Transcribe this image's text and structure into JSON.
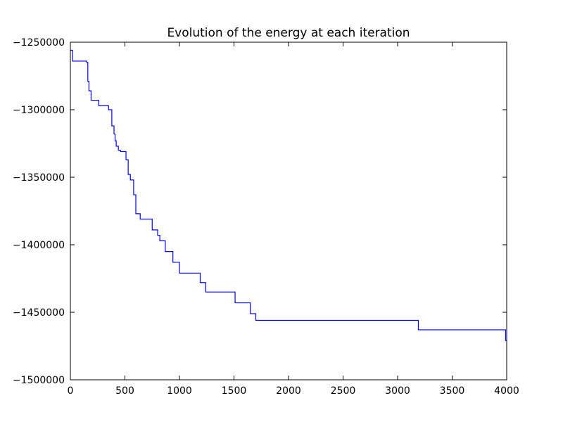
{
  "chart_data": {
    "type": "line",
    "title": "Evolution of the energy at each iteration",
    "xlabel": "",
    "ylabel": "",
    "xlim": [
      0,
      4000
    ],
    "ylim": [
      -1500000,
      -1250000
    ],
    "x_ticks": [
      0,
      500,
      1000,
      1500,
      2000,
      2500,
      3000,
      3500,
      4000
    ],
    "x_tick_labels": [
      "0",
      "500",
      "1000",
      "1500",
      "2000",
      "2500",
      "3000",
      "3500",
      "4000"
    ],
    "y_ticks": [
      -1250000,
      -1300000,
      -1350000,
      -1400000,
      -1450000,
      -1500000
    ],
    "y_tick_labels": [
      "−1250000",
      "−1300000",
      "−1350000",
      "−1400000",
      "−1450000",
      "−1500000"
    ],
    "grid": false,
    "legend": "none",
    "line_color": "#0000ff",
    "series": [
      {
        "step": "post",
        "x": [
          0,
          20,
          150,
          160,
          170,
          190,
          260,
          350,
          380,
          400,
          410,
          420,
          440,
          460,
          510,
          530,
          550,
          580,
          600,
          610,
          640,
          750,
          800,
          820,
          870,
          940,
          1000,
          1190,
          1240,
          1510,
          1650,
          1700,
          3190,
          3990,
          4000
        ],
        "y": [
          -1256000,
          -1264000,
          -1265000,
          -1279000,
          -1286000,
          -1293000,
          -1297000,
          -1300000,
          -1312000,
          -1318000,
          -1323000,
          -1327000,
          -1330000,
          -1331000,
          -1337000,
          -1348000,
          -1352000,
          -1363000,
          -1377000,
          -1377000,
          -1381000,
          -1389000,
          -1393000,
          -1397000,
          -1405000,
          -1413000,
          -1421000,
          -1428000,
          -1435000,
          -1443000,
          -1451000,
          -1456000,
          -1463000,
          -1471000,
          -1471000
        ]
      }
    ]
  }
}
